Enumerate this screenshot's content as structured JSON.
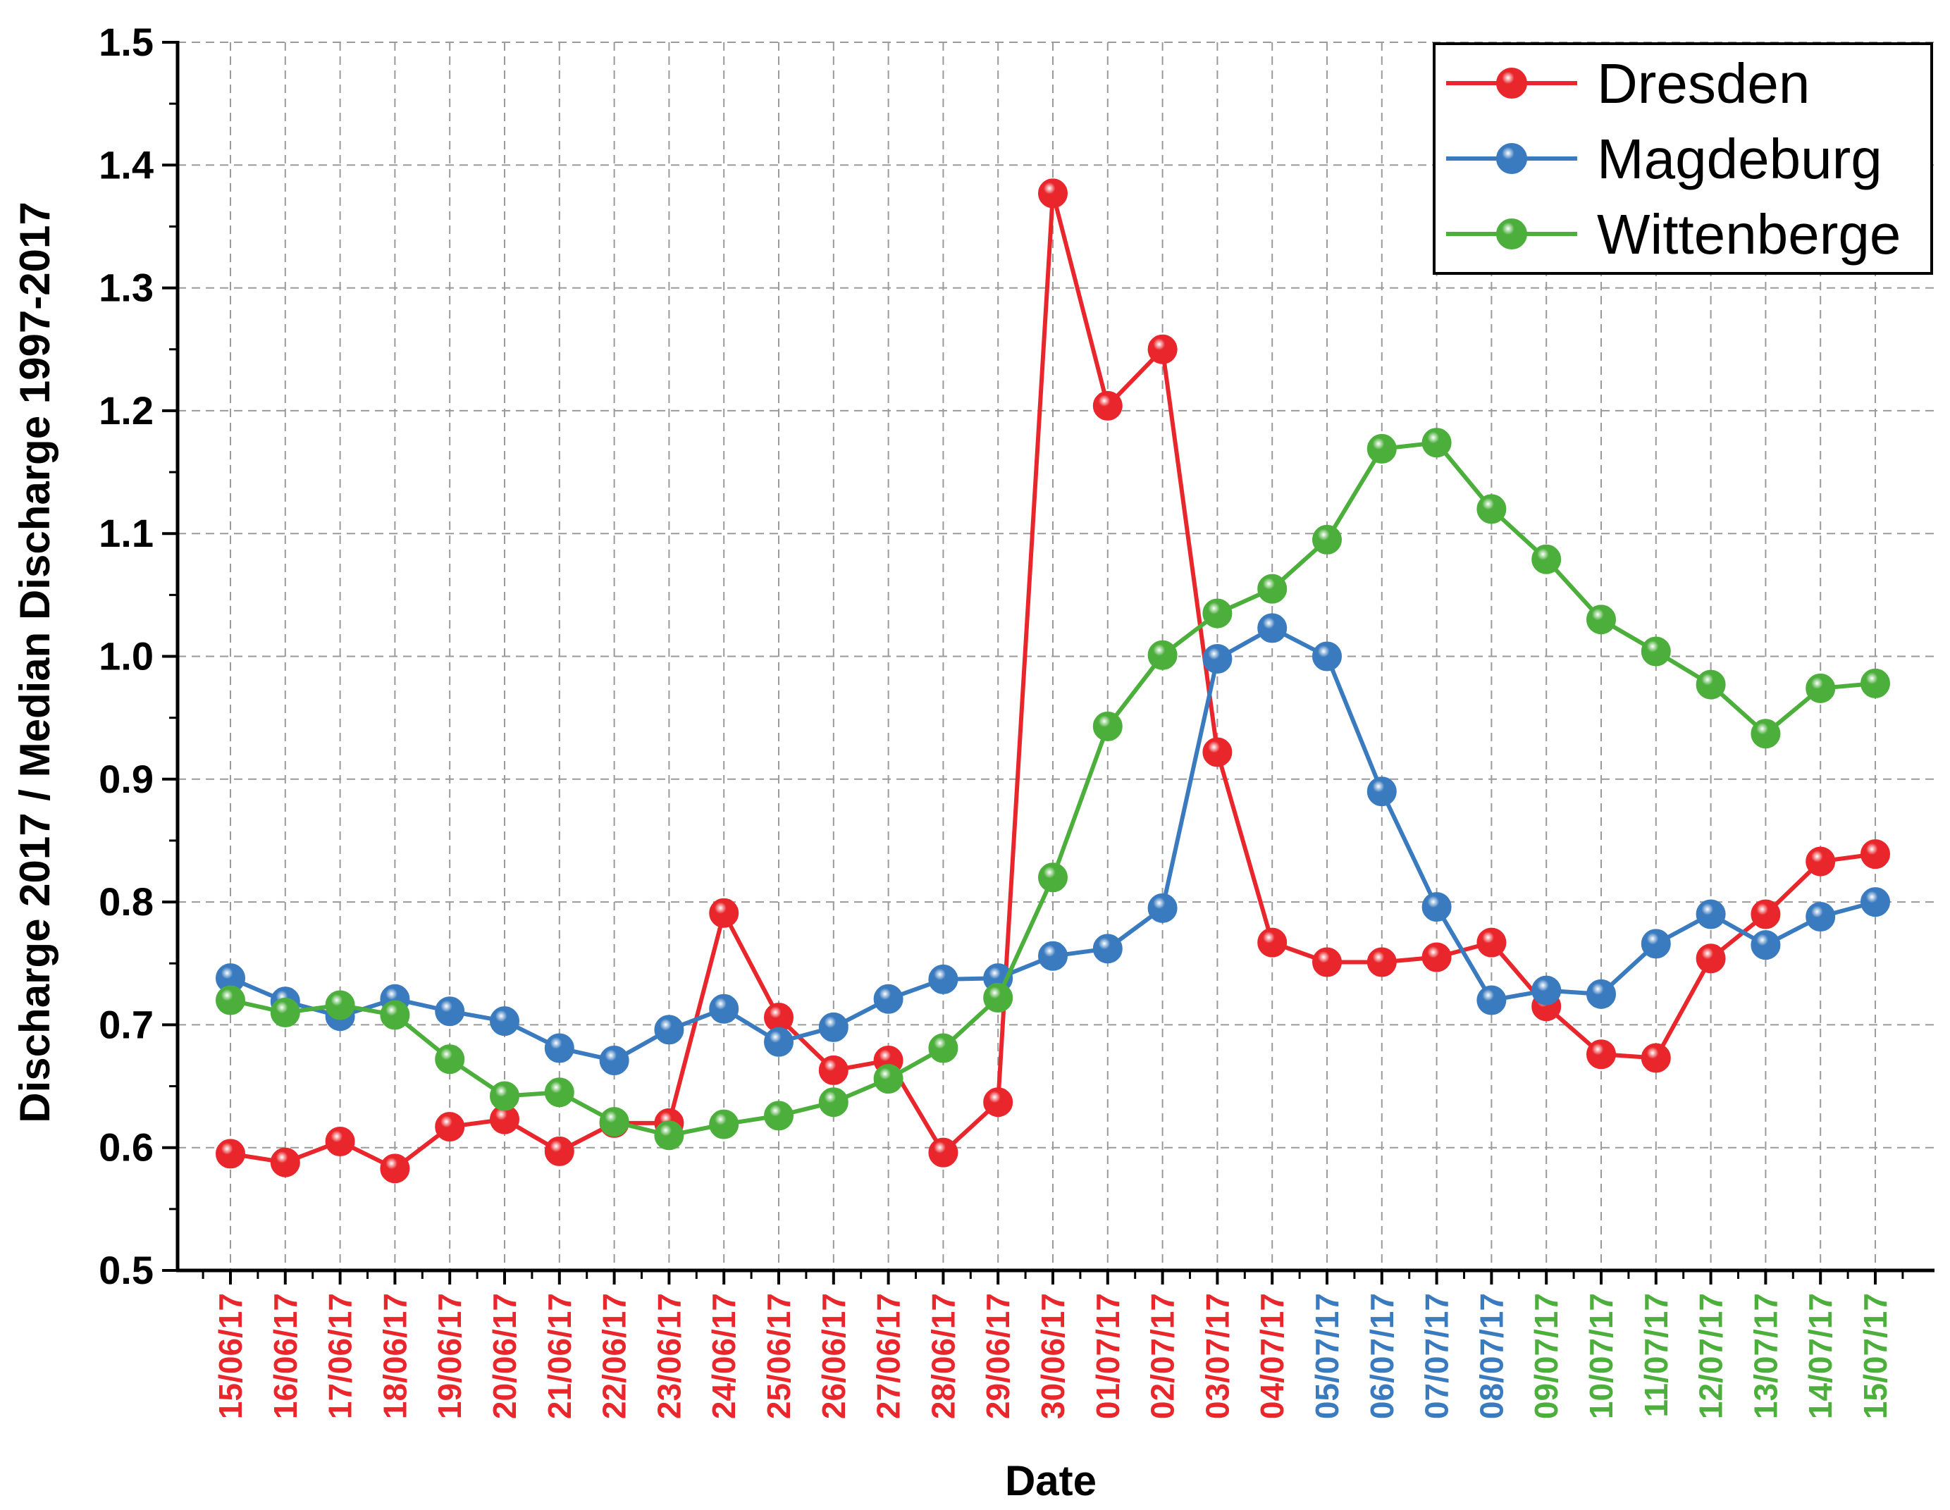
{
  "chart_data": {
    "type": "line",
    "xlabel": "Date",
    "ylabel": "Discharge 2017 / Median Discharge 1997-2017",
    "ylim": [
      0.5,
      1.5
    ],
    "yticks": [
      "0.5",
      "0.6",
      "0.7",
      "0.8",
      "0.9",
      "1.0",
      "1.1",
      "1.2",
      "1.3",
      "1.4",
      "1.5"
    ],
    "grid": true,
    "legend_position": "top-right",
    "categories": [
      "15/06/17",
      "16/06/17",
      "17/06/17",
      "18/06/17",
      "19/06/17",
      "20/06/17",
      "21/06/17",
      "22/06/17",
      "23/06/17",
      "24/06/17",
      "25/06/17",
      "26/06/17",
      "27/06/17",
      "28/06/17",
      "29/06/17",
      "30/06/17",
      "01/07/17",
      "02/07/17",
      "03/07/17",
      "04/07/17",
      "05/07/17",
      "06/07/17",
      "07/07/17",
      "08/07/17",
      "09/07/17",
      "10/07/17",
      "11/07/17",
      "12/07/17",
      "13/07/17",
      "14/07/17",
      "15/07/17"
    ],
    "category_label_colors": [
      "#e8262b",
      "#e8262b",
      "#e8262b",
      "#e8262b",
      "#e8262b",
      "#e8262b",
      "#e8262b",
      "#e8262b",
      "#e8262b",
      "#e8262b",
      "#e8262b",
      "#e8262b",
      "#e8262b",
      "#e8262b",
      "#e8262b",
      "#e8262b",
      "#e8262b",
      "#e8262b",
      "#e8262b",
      "#e8262b",
      "#3a7bbf",
      "#3a7bbf",
      "#3a7bbf",
      "#3a7bbf",
      "#4caf3c",
      "#4caf3c",
      "#4caf3c",
      "#4caf3c",
      "#4caf3c",
      "#4caf3c",
      "#4caf3c"
    ],
    "series": [
      {
        "name": "Dresden",
        "color": "#e8262b",
        "values": [
          0.595,
          0.588,
          0.605,
          0.583,
          0.617,
          0.623,
          0.597,
          0.62,
          0.62,
          0.791,
          0.706,
          0.663,
          0.671,
          0.596,
          0.637,
          1.377,
          1.204,
          1.25,
          0.922,
          0.767,
          0.751,
          0.751,
          0.755,
          0.767,
          0.715,
          0.676,
          0.673,
          0.754,
          0.79,
          0.833,
          0.839
        ]
      },
      {
        "name": "Magdeburg",
        "color": "#3a7bbf",
        "values": [
          0.738,
          0.719,
          0.707,
          0.721,
          0.711,
          0.703,
          0.681,
          0.671,
          0.696,
          0.713,
          0.686,
          0.698,
          0.721,
          0.737,
          0.738,
          0.756,
          0.762,
          0.795,
          0.998,
          1.023,
          1.0,
          0.89,
          0.796,
          0.72,
          0.728,
          0.725,
          0.766,
          0.79,
          0.765,
          0.788,
          0.8
        ]
      },
      {
        "name": "Wittenberge",
        "color": "#4caf3c",
        "values": [
          0.72,
          0.71,
          0.716,
          0.708,
          0.672,
          0.642,
          0.645,
          0.621,
          0.61,
          0.619,
          0.626,
          0.637,
          0.656,
          0.681,
          0.722,
          0.82,
          0.943,
          1.001,
          1.035,
          1.055,
          1.095,
          1.169,
          1.174,
          1.12,
          1.079,
          1.03,
          1.004,
          0.977,
          0.937,
          0.974,
          0.978
        ]
      }
    ]
  }
}
